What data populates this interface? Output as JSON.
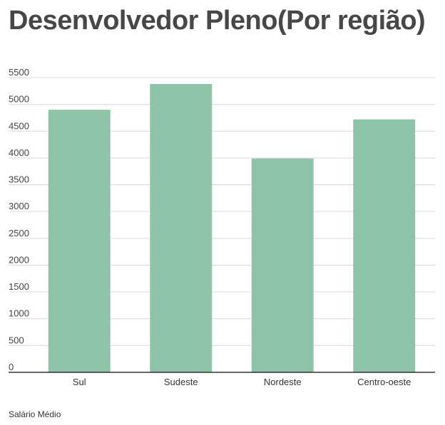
{
  "title": "Desenvolvedor Pleno(Por região)",
  "caption": "Salário Médio",
  "colors": {
    "bar": "#8fc3a8",
    "grid": "#d9d9d9",
    "baseline": "#333333",
    "title": "#474747"
  },
  "chart_data": {
    "type": "bar",
    "title": "Desenvolvedor Pleno(Por região)",
    "xlabel": "",
    "ylabel": "",
    "categories": [
      "Sul",
      "Sudeste",
      "Nordeste",
      "Centro-oeste"
    ],
    "values": [
      4900,
      5380,
      3990,
      4720
    ],
    "ylim": [
      0,
      5500
    ],
    "yticks": [
      0,
      500,
      1000,
      1500,
      2000,
      2500,
      3000,
      3500,
      4000,
      4500,
      5000,
      5500
    ],
    "grid": true,
    "legend": "none"
  }
}
